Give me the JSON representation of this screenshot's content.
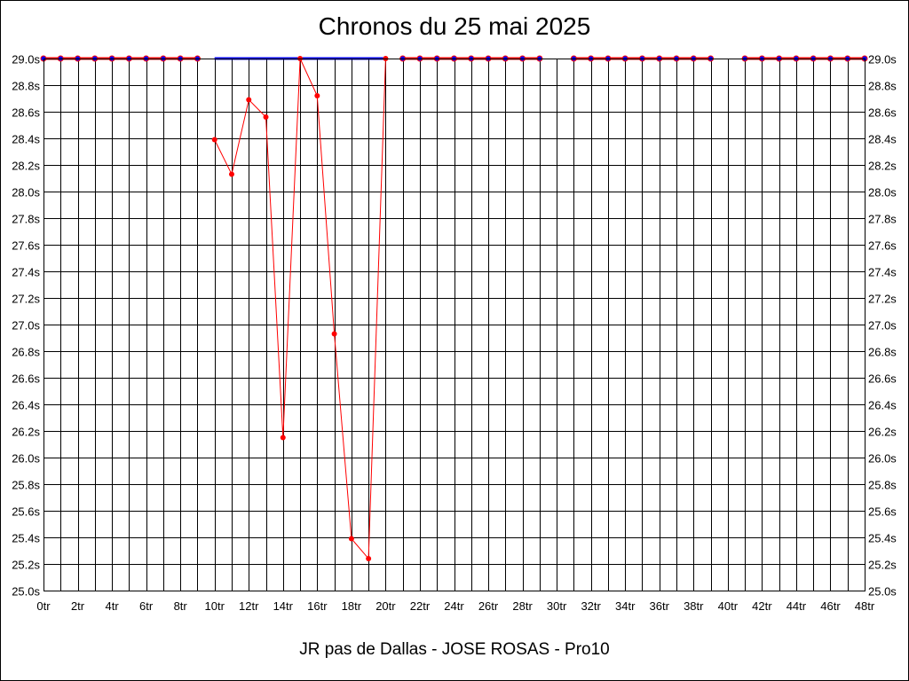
{
  "chart_data": {
    "type": "line",
    "title": "Chronos du 25 mai 2025",
    "xlabel": "JR pas de Dallas - JOSE ROSAS - Pro10",
    "ylabel": "",
    "xlim": [
      0,
      48
    ],
    "ylim": [
      25.0,
      29.0
    ],
    "y_ticks": [
      "25.0s",
      "25.2s",
      "25.4s",
      "25.6s",
      "25.8s",
      "26.0s",
      "26.2s",
      "26.4s",
      "26.6s",
      "26.8s",
      "27.0s",
      "27.2s",
      "27.4s",
      "27.6s",
      "27.8s",
      "28.0s",
      "28.2s",
      "28.4s",
      "28.6s",
      "28.8s",
      "29.0s"
    ],
    "x_ticks": [
      "0tr",
      "2tr",
      "4tr",
      "6tr",
      "8tr",
      "10tr",
      "12tr",
      "14tr",
      "16tr",
      "18tr",
      "20tr",
      "22tr",
      "24tr",
      "26tr",
      "28tr",
      "30tr",
      "32tr",
      "34tr",
      "36tr",
      "38tr",
      "40tr",
      "42tr",
      "44tr",
      "46tr",
      "48tr"
    ],
    "grid": true,
    "y_axis_sides": "left-and-right",
    "colors": {
      "series": "#ff0000",
      "capped": "#0000ff",
      "grid": "#000000"
    },
    "series": [
      {
        "x": [
          10,
          11,
          12,
          13,
          14,
          15,
          16,
          17,
          18,
          19,
          20
        ],
        "y": [
          28.39,
          28.13,
          28.69,
          28.56,
          26.15,
          29.0,
          28.72,
          26.93,
          25.39,
          25.24,
          29.0
        ]
      }
    ],
    "capped_markers": [
      0,
      1,
      2,
      3,
      4,
      5,
      6,
      7,
      8,
      9,
      21,
      22,
      23,
      24,
      25,
      26,
      27,
      28,
      29,
      31,
      32,
      33,
      34,
      35,
      36,
      37,
      38,
      39,
      41,
      42,
      43,
      44,
      45,
      46,
      47,
      48
    ],
    "capped_red_segments": [
      [
        0,
        9
      ],
      [
        21,
        29
      ],
      [
        31,
        39
      ],
      [
        41,
        48
      ]
    ],
    "capped_blue_segments": [
      [
        10,
        20
      ]
    ]
  }
}
